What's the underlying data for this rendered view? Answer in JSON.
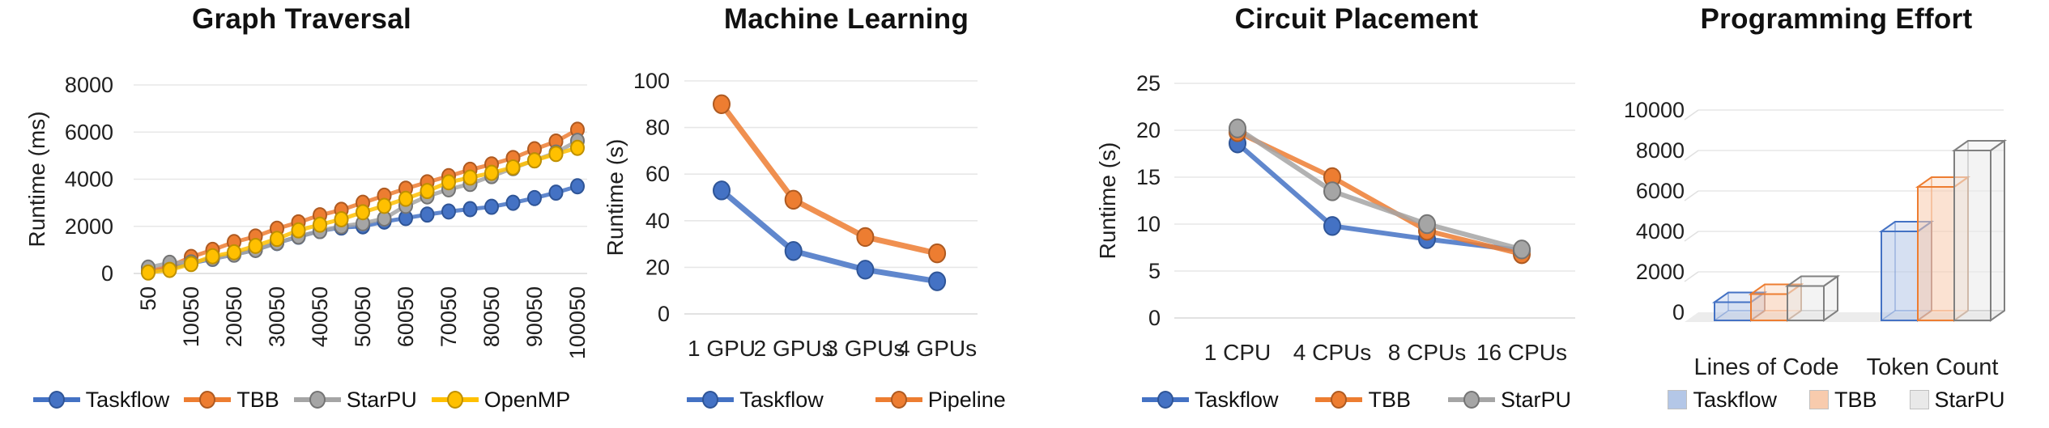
{
  "chart_data": [
    {
      "type": "line",
      "title": "Graph Traversal",
      "ylabel": "Runtime (ms)",
      "ylim": [
        0,
        8000
      ],
      "yticks": [
        0,
        2000,
        4000,
        6000,
        8000
      ],
      "x_start": 50,
      "x_step": 5000,
      "n_points": 21,
      "x_tick_labels": [
        "50",
        "10050",
        "20050",
        "30050",
        "40050",
        "50050",
        "60050",
        "70050",
        "80050",
        "90050",
        "100050"
      ],
      "grid": "horizontal",
      "legend_position": "bottom",
      "series": [
        {
          "name": "Taskflow",
          "color": "#4472C4",
          "edge": "#2F5597",
          "values": [
            60,
            230,
            430,
            620,
            800,
            1000,
            1290,
            1560,
            1800,
            1950,
            2000,
            2200,
            2350,
            2500,
            2630,
            2730,
            2830,
            3000,
            3200,
            3430,
            3700
          ]
        },
        {
          "name": "TBB",
          "color": "#ED7D31",
          "edge": "#AE5A21",
          "values": [
            100,
            300,
            700,
            1000,
            1330,
            1570,
            1900,
            2170,
            2470,
            2700,
            3000,
            3300,
            3600,
            3870,
            4130,
            4400,
            4630,
            4900,
            5270,
            5600,
            6100
          ]
        },
        {
          "name": "StarPU",
          "color": "#A5A5A5",
          "edge": "#747474",
          "values": [
            250,
            450,
            470,
            630,
            800,
            1000,
            1300,
            1570,
            1800,
            2000,
            2130,
            2330,
            2870,
            3270,
            3570,
            3800,
            4130,
            4470,
            4800,
            5130,
            5630
          ]
        },
        {
          "name": "OpenMP",
          "color": "#FFC000",
          "edge": "#BF9000",
          "values": [
            40,
            150,
            400,
            730,
            900,
            1170,
            1470,
            1830,
            2070,
            2300,
            2600,
            2870,
            3170,
            3500,
            3870,
            4070,
            4270,
            4500,
            4800,
            5070,
            5330
          ]
        }
      ]
    },
    {
      "type": "line",
      "title": "Machine Learning",
      "ylabel": "Runtime (s)",
      "ylim": [
        0,
        100
      ],
      "yticks": [
        0,
        20,
        40,
        60,
        80,
        100
      ],
      "categories": [
        "1 GPU",
        "2 GPUs",
        "3 GPUs",
        "4 GPUs"
      ],
      "grid": "horizontal",
      "legend_position": "bottom",
      "series": [
        {
          "name": "Taskflow",
          "color": "#4472C4",
          "edge": "#2F5597",
          "values": [
            53,
            27,
            19,
            14
          ]
        },
        {
          "name": "Pipeline",
          "color": "#ED7D31",
          "edge": "#AE5A21",
          "values": [
            90,
            49,
            33,
            26
          ]
        }
      ]
    },
    {
      "type": "line",
      "title": "Circuit Placement",
      "ylabel": "Runtime (s)",
      "ylim": [
        0,
        25
      ],
      "yticks": [
        0,
        5,
        10,
        15,
        20,
        25
      ],
      "categories": [
        "1 CPU",
        "4 CPUs",
        "8 CPUs",
        "16 CPUs"
      ],
      "grid": "horizontal",
      "legend_position": "bottom",
      "series": [
        {
          "name": "Taskflow",
          "color": "#4472C4",
          "edge": "#2F5597",
          "values": [
            18.6,
            9.8,
            8.4,
            7.2
          ]
        },
        {
          "name": "TBB",
          "color": "#ED7D31",
          "edge": "#AE5A21",
          "values": [
            19.8,
            15.0,
            9.3,
            6.8
          ]
        },
        {
          "name": "StarPU",
          "color": "#A5A5A5",
          "edge": "#747474",
          "values": [
            20.2,
            13.5,
            10.0,
            7.3
          ]
        }
      ]
    },
    {
      "type": "bar",
      "style_3d": true,
      "title": "Programming Effort",
      "ylabel": "",
      "ylim": [
        0,
        10000
      ],
      "yticks": [
        0,
        2000,
        4000,
        6000,
        8000,
        10000
      ],
      "categories": [
        "Lines of Code",
        "Token Count"
      ],
      "grid": "horizontal",
      "legend_position": "bottom",
      "series": [
        {
          "name": "Taskflow",
          "fill": "#B4C7E7",
          "edge": "#4472C4",
          "values": [
            900,
            4400
          ]
        },
        {
          "name": "TBB",
          "fill": "#F8CBAD",
          "edge": "#ED7D31",
          "values": [
            1300,
            6600
          ]
        },
        {
          "name": "StarPU",
          "fill": "#E9E9E9",
          "edge": "#808080",
          "values": [
            1700,
            8400
          ]
        }
      ]
    }
  ]
}
